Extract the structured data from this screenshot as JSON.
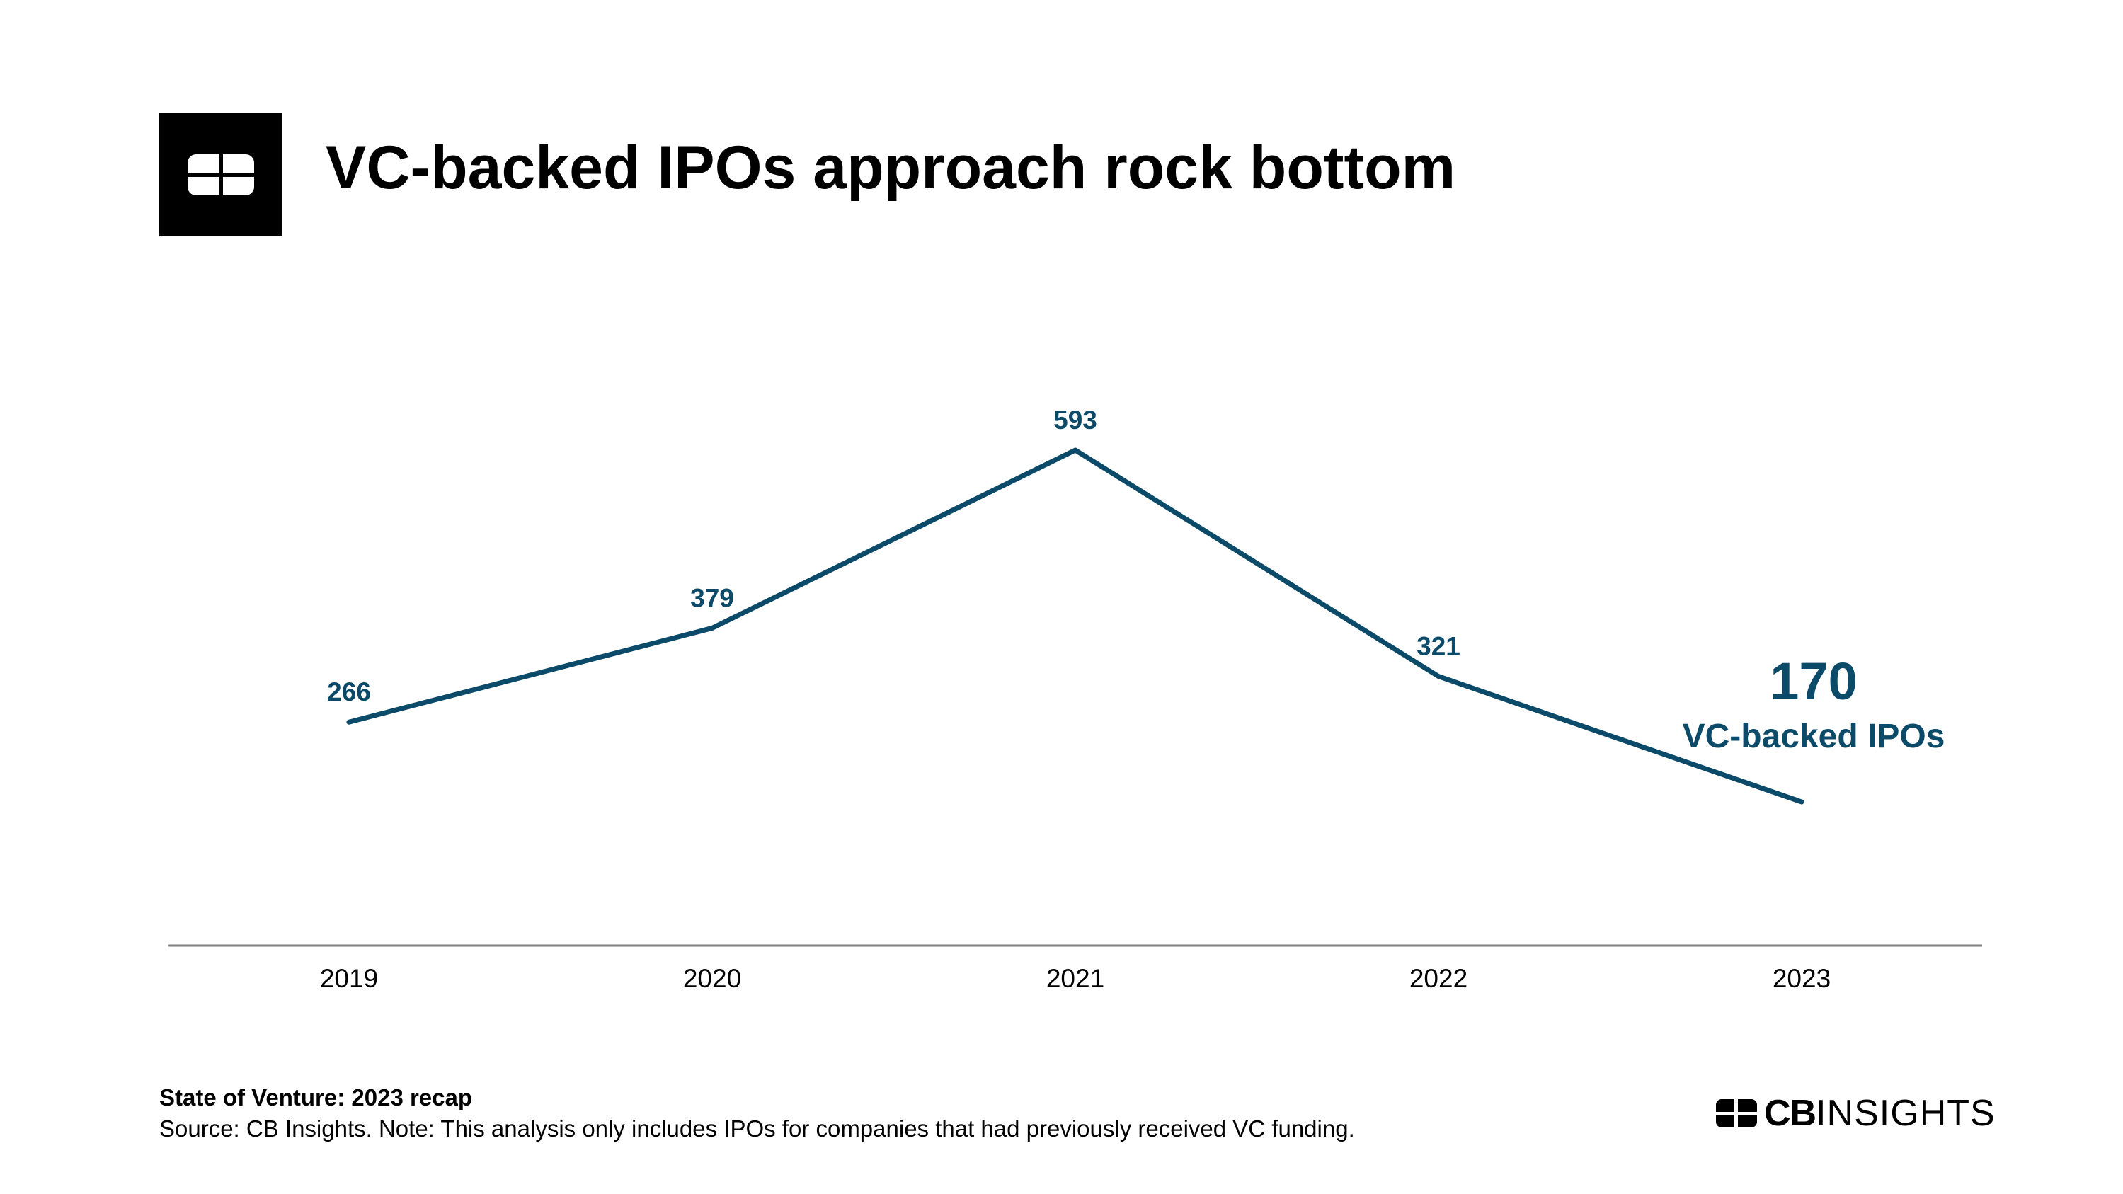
{
  "header": {
    "title": "VC-backed IPOs approach rock bottom"
  },
  "chart_data": {
    "type": "line",
    "title": "VC-backed IPOs approach rock bottom",
    "categories": [
      "2019",
      "2020",
      "2021",
      "2022",
      "2023"
    ],
    "series": [
      {
        "values": [
          266,
          379,
          593,
          321,
          170
        ]
      }
    ],
    "data_labels": [
      "266",
      "379",
      "593",
      "321"
    ],
    "callout": {
      "value": "170",
      "label": "VC-backed IPOs"
    },
    "xlabel": "",
    "ylabel": "",
    "grid": false,
    "legend": "none",
    "line_color": "#0b4a68"
  },
  "footer": {
    "report": "State of Venture: 2023 recap",
    "source": "Source: CB Insights. Note: This analysis only includes IPOs for companies that had previously received VC funding."
  },
  "brand": {
    "cb": "CB",
    "insights": "INSIGHTS",
    "logo_lettering": "CB Insights"
  },
  "colors": {
    "accent": "#0b4a68",
    "text": "#000000",
    "axis": "#808080",
    "background": "#ffffff"
  }
}
